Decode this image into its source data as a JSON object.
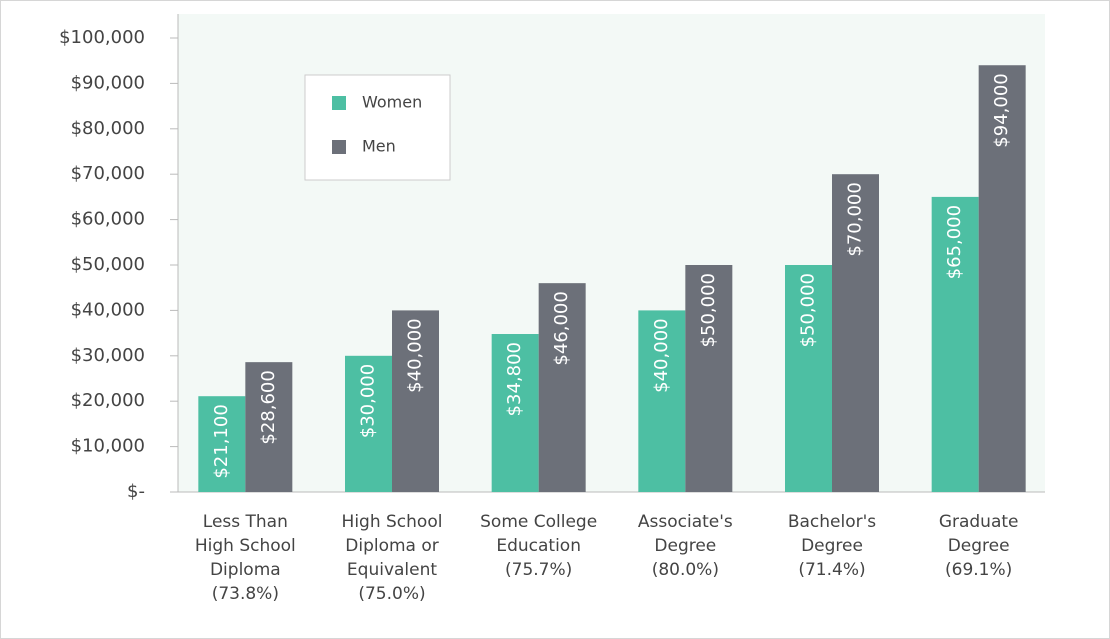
{
  "chart_data": {
    "type": "bar",
    "categories": [
      [
        "Less Than",
        "High School",
        "Diploma",
        "(73.8%)"
      ],
      [
        "High School",
        "Diploma or",
        "Equivalent",
        "(75.0%)"
      ],
      [
        "Some College",
        "Education",
        "(75.7%)"
      ],
      [
        "Associate's",
        "Degree",
        "(80.0%)"
      ],
      [
        "Bachelor's",
        "Degree",
        "(71.4%)"
      ],
      [
        "Graduate",
        "Degree",
        "(69.1%)"
      ]
    ],
    "series": [
      {
        "name": "Women",
        "color": "#4dbfa3",
        "values": [
          21100,
          30000,
          34800,
          40000,
          50000,
          65000
        ],
        "value_labels": [
          "$21,100",
          "$30,000",
          "$34,800",
          "$40,000",
          "$50,000",
          "$65,000"
        ]
      },
      {
        "name": "Men",
        "color": "#6c7079",
        "values": [
          28600,
          40000,
          46000,
          50000,
          70000,
          94000
        ],
        "value_labels": [
          "$28,600",
          "$40,000",
          "$46,000",
          "$50,000",
          "$70,000",
          "$94,000"
        ]
      }
    ],
    "ylim": [
      0,
      100000
    ],
    "yticks": [
      {
        "value": 0,
        "label": "$-"
      },
      {
        "value": 10000,
        "label": "$10,000"
      },
      {
        "value": 20000,
        "label": "$20,000"
      },
      {
        "value": 30000,
        "label": "$30,000"
      },
      {
        "value": 40000,
        "label": "$40,000"
      },
      {
        "value": 50000,
        "label": "$50,000"
      },
      {
        "value": 60000,
        "label": "$60,000"
      },
      {
        "value": 70000,
        "label": "$70,000"
      },
      {
        "value": 80000,
        "label": "$80,000"
      },
      {
        "value": 90000,
        "label": "$90,000"
      },
      {
        "value": 100000,
        "label": "$100,000"
      }
    ],
    "legend": "upper left"
  }
}
